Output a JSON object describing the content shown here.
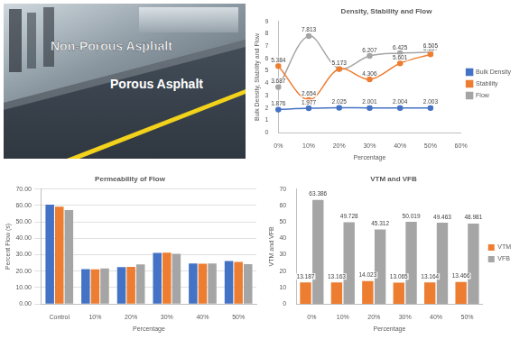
{
  "image": {
    "labels": [
      "Non-Porous Asphalt",
      "Porous Asphalt"
    ]
  },
  "chart_data": [
    {
      "type": "line",
      "title": "Density, Stability and Flow",
      "x_label": "Percentage",
      "y_label": "Bulk Density, Stability and Flow",
      "categories": [
        "0%",
        "10%",
        "20%",
        "30%",
        "40%",
        "50%",
        "60%"
      ],
      "series": [
        {
          "name": "Bulk Density",
          "color": "#4472c4",
          "marker": "circle",
          "values": [
            1.876,
            1.977,
            2.025,
            2.001,
            2.004,
            2.003,
            null
          ]
        },
        {
          "name": "Stability",
          "color": "#ed7d31",
          "marker": "circle",
          "values": [
            5.384,
            2.654,
            5.152,
            4.306,
            5.601,
            6.337,
            null
          ]
        },
        {
          "name": "Flow",
          "color": "#a5a5a5",
          "marker": "circle",
          "values": [
            3.687,
            7.813,
            5.173,
            6.207,
            6.425,
            6.505,
            null
          ]
        }
      ],
      "ylim": [
        0,
        9
      ],
      "yticks": [
        0,
        1,
        2,
        3,
        4,
        5,
        6,
        7,
        8,
        9
      ],
      "grid": false,
      "legend": "right",
      "data_labels": true
    },
    {
      "type": "bar",
      "title": "Permeability of Flow",
      "x_label": "Percentage",
      "y_label": "Percent Flow (s)",
      "categories": [
        "Control",
        "10%",
        "20%",
        "30%",
        "40%",
        "50%"
      ],
      "series": [
        {
          "color": "#4472c4",
          "values": [
            60.5,
            21.2,
            22.5,
            31.1,
            24.6,
            26.1
          ]
        },
        {
          "color": "#ed7d31",
          "values": [
            59.2,
            21.1,
            22.6,
            31.2,
            24.5,
            25.6
          ]
        },
        {
          "color": "#a5a5a5",
          "values": [
            57.1,
            21.6,
            24.1,
            30.6,
            24.7,
            24.2
          ]
        }
      ],
      "ylim": [
        0,
        70
      ],
      "yticks": [
        {
          "value": 0,
          "label": "0.00"
        },
        {
          "value": 10,
          "label": "10.00"
        },
        {
          "value": 20,
          "label": "20.00"
        },
        {
          "value": 30,
          "label": "30.00"
        },
        {
          "value": 40,
          "label": "40.00"
        },
        {
          "value": 50,
          "label": "50.00"
        },
        {
          "value": 60,
          "label": "60.00"
        },
        {
          "value": 70,
          "label": "70.00"
        }
      ],
      "grid": true
    },
    {
      "type": "bar",
      "title": "VTM and VFB",
      "x_label": "Percentage",
      "y_label": "VTM and VFB",
      "categories": [
        "0%",
        "10%",
        "20%",
        "30%",
        "40%",
        "50%"
      ],
      "series": [
        {
          "name": "VTM",
          "color": "#ed7d31",
          "values": [
            13.187,
            13.163,
            14.023,
            13.065,
            13.164,
            13.466
          ]
        },
        {
          "name": "VFB",
          "color": "#a5a5a5",
          "values": [
            63.386,
            49.728,
            45.312,
            50.019,
            49.463,
            48.981
          ]
        }
      ],
      "ylim": [
        0,
        70
      ],
      "yticks": [
        0,
        10,
        20,
        30,
        40,
        50,
        60,
        70
      ],
      "grid": false,
      "legend": "right",
      "data_labels": true
    }
  ]
}
